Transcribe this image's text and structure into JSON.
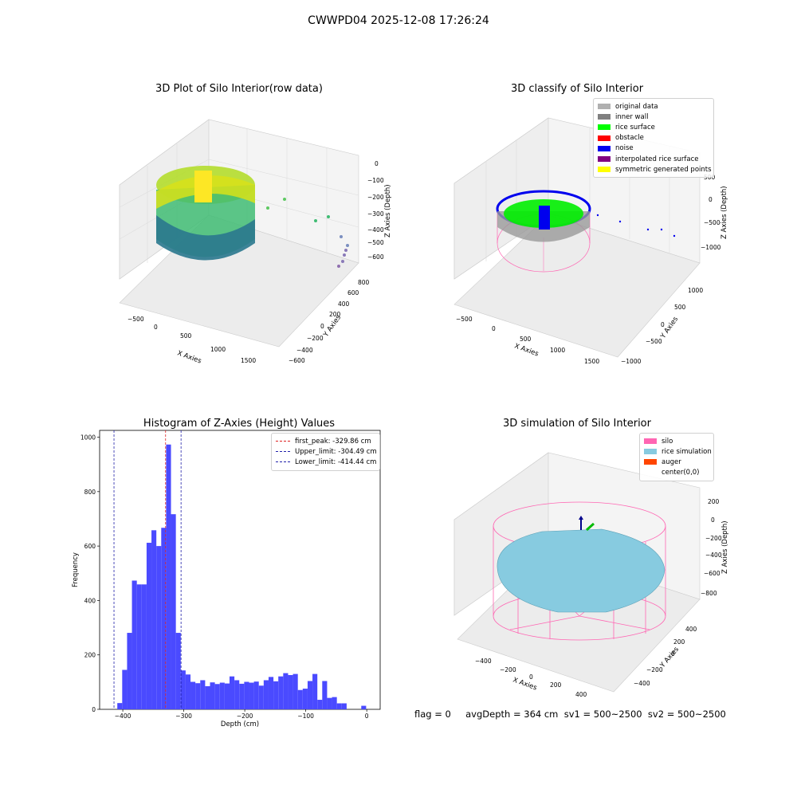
{
  "suptitle": "CWWPD04 2025-12-08 17:26:24",
  "colors": {
    "bar": "#4a4aff",
    "peak": "#dd2222",
    "limit": "#2222aa",
    "silo": "#ff66b3",
    "rice_sim": "#87cbe0",
    "auger": "#ff4500",
    "orig": "#b0b0b0",
    "wall": "#808080",
    "rice": "#00ff00",
    "obstacle": "#ff0000",
    "noise": "#0000ee",
    "interp": "#800080",
    "sym": "#ffff00"
  },
  "chart_data": [
    {
      "type": "scatter",
      "title": "3D Plot of Silo Interior(row data)",
      "xlabel": "X Axies",
      "ylabel": "Y Axies",
      "zlabel": "Z Axies (Depth)",
      "xticks": [
        "−500",
        "0",
        "500",
        "1000",
        "1500"
      ],
      "yticks": [
        "−600",
        "−400",
        "−200",
        "0",
        "200",
        "400",
        "600",
        "800"
      ],
      "zticks": [
        "0",
        "−100",
        "−200",
        "−300",
        "−400",
        "−500",
        "−600"
      ],
      "colormap": "viridis"
    },
    {
      "type": "scatter",
      "title": "3D classify of Silo Interior",
      "xlabel": "X Axies",
      "ylabel": "Y Axies",
      "zlabel": "Z Axies (Depth)",
      "xticks": [
        "−500",
        "0",
        "500",
        "1000",
        "1500"
      ],
      "yticks": [
        "−1000",
        "−500",
        "0",
        "500",
        "1000"
      ],
      "zticks": [
        "500",
        "0",
        "−500",
        "−1000"
      ],
      "legend": [
        "original data",
        "inner wall",
        "rice surface",
        "obstacle",
        "noise",
        "interpolated rice surface",
        "symmetric generated points"
      ],
      "legend_position": "top-right"
    },
    {
      "type": "bar",
      "title": "Histogram of Z-Axies (Height) Values",
      "xlabel": "Depth (cm)",
      "ylabel": "Frequency",
      "xlim": [
        -438,
        22
      ],
      "ylim": [
        0,
        1025
      ],
      "xticks": [
        "−400",
        "−300",
        "−200",
        "−100",
        "0"
      ],
      "yticks": [
        "0",
        "200",
        "400",
        "600",
        "800",
        "1000"
      ],
      "bin_width": 8,
      "bins_start": [
        -417,
        -409,
        -401,
        -393,
        -385,
        -377,
        -369,
        -361,
        -353,
        -345,
        -337,
        -329,
        -321,
        -313,
        -305,
        -297,
        -289,
        -281,
        -273,
        -265,
        -257,
        -249,
        -241,
        -233,
        -225,
        -217,
        -209,
        -201,
        -193,
        -185,
        -177,
        -169,
        -161,
        -153,
        -145,
        -137,
        -129,
        -121,
        -113,
        -105,
        -97,
        -89,
        -81,
        -73,
        -65,
        -57,
        -49,
        -41,
        -33,
        -25,
        -17,
        -9,
        -1
      ],
      "values": [
        0,
        23,
        145,
        281,
        473,
        459,
        459,
        612,
        658,
        600,
        667,
        973,
        717,
        281,
        143,
        128,
        101,
        96,
        107,
        85,
        99,
        93,
        98,
        95,
        121,
        107,
        94,
        101,
        98,
        102,
        87,
        107,
        119,
        103,
        121,
        133,
        126,
        130,
        71,
        76,
        104,
        130,
        35,
        104,
        42,
        45,
        22,
        22,
        0,
        0,
        0,
        13,
        0
      ],
      "vlines": [
        {
          "label": "first_peak: -329.86 cm",
          "x": -329.86,
          "style": "peak"
        },
        {
          "label": "Upper_limit: -304.49 cm",
          "x": -304.49,
          "style": "limit"
        },
        {
          "label": "Lower_limit: -414.44 cm",
          "x": -414.44,
          "style": "limit"
        }
      ],
      "legend_position": "top-right"
    },
    {
      "type": "surface",
      "title": "3D simulation of Silo Interior",
      "xlabel": "X Axies",
      "ylabel": "Y Axies",
      "zlabel": "Z Axies (Depth)",
      "xticks": [
        "−400",
        "−200",
        "0",
        "200",
        "400"
      ],
      "yticks": [
        "−400",
        "−200",
        "0",
        "200",
        "400"
      ],
      "zticks": [
        "200",
        "0",
        "−200",
        "−400",
        "−600",
        "−800"
      ],
      "legend": [
        "silo",
        "rice simulation",
        "auger",
        "center(0,0)"
      ],
      "legend_position": "top-right"
    }
  ],
  "status": "flag = 0     avgDepth = 364 cm  sv1 = 500~2500  sv2 = 500~2500"
}
